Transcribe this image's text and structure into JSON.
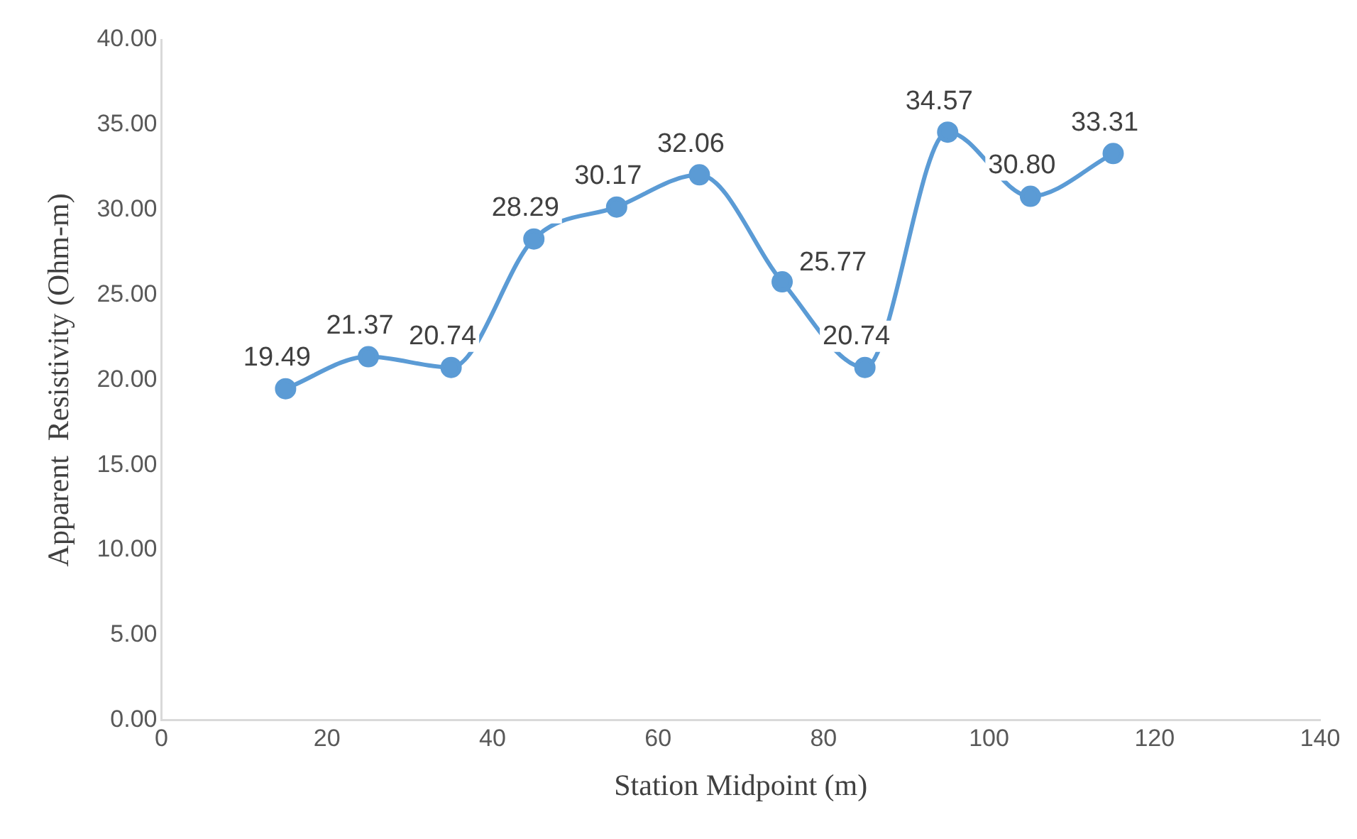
{
  "chart_data": {
    "type": "line",
    "xlabel": "Station Midpoint (m)",
    "ylabel": "Apparent  Resistivity (Ohm-m)",
    "x": [
      15,
      25,
      35,
      45,
      55,
      65,
      75,
      85,
      95,
      105,
      115
    ],
    "series": [
      {
        "color": "#5b9bd5",
        "values": [
          19.49,
          21.37,
          20.74,
          28.29,
          30.17,
          32.06,
          25.77,
          20.74,
          34.57,
          30.8,
          33.31
        ]
      }
    ],
    "xlim": [
      0,
      140
    ],
    "xticks": [
      0,
      20,
      40,
      60,
      80,
      100,
      120,
      140
    ],
    "ylim": [
      0,
      40
    ],
    "yticks": [
      {
        "value": 0,
        "label": "0.00"
      },
      {
        "value": 5,
        "label": "5.00"
      },
      {
        "value": 10,
        "label": "10.00"
      },
      {
        "value": 15,
        "label": "15.00"
      },
      {
        "value": 20,
        "label": "20.00"
      },
      {
        "value": 25,
        "label": "25.00"
      },
      {
        "value": 30,
        "label": "30.00"
      },
      {
        "value": 35,
        "label": "35.00"
      },
      {
        "value": 40,
        "label": "40.00"
      }
    ],
    "value_labels": [
      "19.49",
      "21.37",
      "20.74",
      "28.29",
      "30.17",
      "32.06",
      "25.77",
      "20.74",
      "34.57",
      "30.80",
      "33.31"
    ],
    "grid": false,
    "legend": false,
    "marker": "circle",
    "line_style": "solid"
  }
}
